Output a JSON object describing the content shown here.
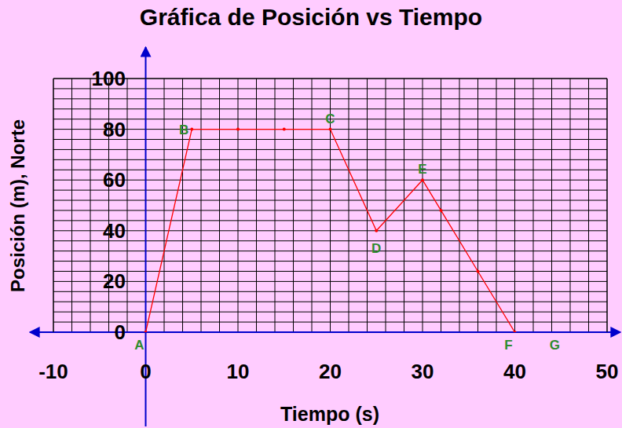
{
  "chart_data": {
    "type": "line",
    "title": "Gráfica de Posición vs Tiempo",
    "x_label": "Tiempo (s)",
    "y_label": "Posición (m), Norte",
    "x": [
      0,
      5,
      10,
      15,
      20,
      25,
      30,
      32,
      36,
      40
    ],
    "series": [
      {
        "name": "Posición",
        "color": "#FF0000",
        "marker": "dot",
        "line_style": "solid",
        "values": [
          0,
          80,
          80,
          80,
          80,
          40,
          60,
          48,
          24,
          0
        ]
      }
    ],
    "annotations": [
      {
        "text": "A",
        "x": 0,
        "y": 0
      },
      {
        "text": "B",
        "x": 5,
        "y": 80
      },
      {
        "text": "C",
        "x": 20,
        "y": 80
      },
      {
        "text": "D",
        "x": 25,
        "y": 40
      },
      {
        "text": "E",
        "x": 30,
        "y": 60
      },
      {
        "text": "F",
        "x": 40,
        "y": 0
      },
      {
        "text": "G",
        "x": 45,
        "y": 0
      }
    ],
    "xlim": [
      -10,
      50
    ],
    "xticks": [
      -10,
      0,
      10,
      20,
      30,
      40,
      50
    ],
    "ylim": [
      0,
      100
    ],
    "yticks": [
      0,
      20,
      40,
      60,
      80,
      100
    ],
    "grid": true
  }
}
